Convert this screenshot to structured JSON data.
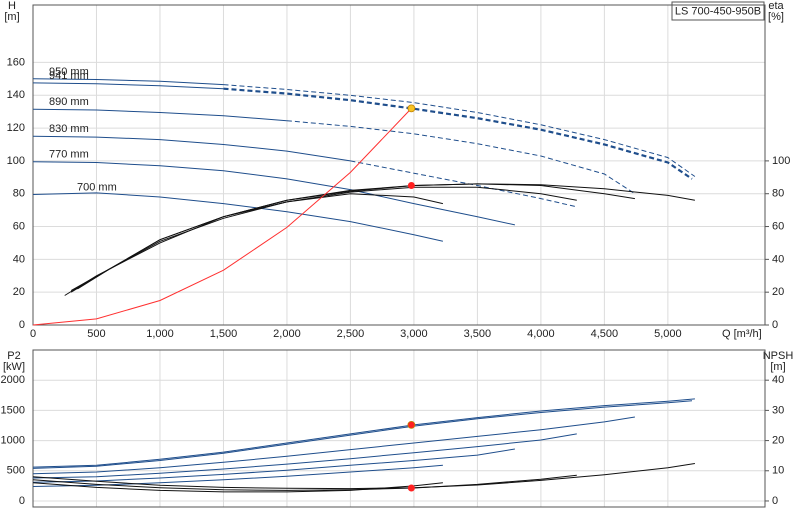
{
  "chart_data": [
    {
      "type": "line",
      "title": "LS 700-450-950B",
      "x_label": "Q [m³/h]",
      "y_label": "H",
      "y_unit": "[m]",
      "y2_label": "eta",
      "y2_unit": "[%]",
      "xlim": [
        0,
        5765
      ],
      "xticks": [
        0,
        500,
        {
          "value": 1000,
          "label": "1,000"
        },
        {
          "value": 1500,
          "label": "1,500"
        },
        {
          "value": 2000,
          "label": "2,000"
        },
        {
          "value": 2500,
          "label": "2,500"
        },
        {
          "value": 3000,
          "label": "3,000"
        },
        {
          "value": 3500,
          "label": "3,500"
        },
        {
          "value": 4000,
          "label": "4,000"
        },
        {
          "value": 4500,
          "label": "4,500"
        },
        {
          "value": 5000,
          "label": "5,000"
        }
      ],
      "ylim": [
        0,
        195
      ],
      "yticks": [
        0,
        20,
        40,
        60,
        80,
        100,
        120,
        140,
        160
      ],
      "y2lim": [
        0,
        195
      ],
      "y2ticks": [
        0,
        20,
        40,
        60,
        80,
        100
      ],
      "grid": true,
      "series": [
        {
          "name": "950 mm",
          "color": "#1f4e8c",
          "style": "solid",
          "x": [
            0,
            500,
            1000,
            1500
          ],
          "values": [
            150,
            149.6,
            148.5,
            146.5
          ]
        },
        {
          "color": "#1f4e8c",
          "style": "dashed",
          "x": [
            1500,
            2000,
            2500,
            3000,
            3500,
            4000,
            4500,
            5000,
            5213
          ],
          "values": [
            146.5,
            143.5,
            140,
            135.5,
            129.5,
            122,
            113,
            102,
            90.5
          ]
        },
        {
          "name": "941 mm",
          "color": "#1f4e8c",
          "style": "solid",
          "x": [
            0,
            500,
            1000,
            1500
          ],
          "values": [
            147.5,
            147,
            145.8,
            144
          ]
        },
        {
          "color": "#1f4e8c",
          "style": "dashed",
          "line_width": 2.2,
          "x": [
            1500,
            2000,
            2500,
            2980,
            3500,
            4000,
            4500,
            5000,
            5190
          ],
          "values": [
            144,
            141,
            137,
            132,
            126,
            119,
            110,
            99,
            89
          ]
        },
        {
          "name": "890 mm",
          "color": "#1f4e8c",
          "style": "solid",
          "x": [
            0,
            500,
            1000,
            1500,
            2000
          ],
          "values": [
            131.5,
            131,
            129.5,
            127.5,
            124.5
          ]
        },
        {
          "color": "#1f4e8c",
          "style": "dashed",
          "x": [
            2000,
            2500,
            3000,
            3500,
            4000,
            4500,
            4740
          ],
          "values": [
            124.5,
            121,
            116.5,
            110.5,
            103,
            92,
            80
          ]
        },
        {
          "name": "830 mm",
          "color": "#1f4e8c",
          "style": "solid",
          "x": [
            0,
            500,
            1000,
            1500,
            2000,
            2500
          ],
          "values": [
            115,
            114.5,
            113,
            110,
            106,
            100
          ]
        },
        {
          "color": "#1f4e8c",
          "style": "dashed",
          "x": [
            2500,
            3000,
            3500,
            4000,
            4283
          ],
          "values": [
            100,
            92.5,
            85,
            77,
            72
          ]
        },
        {
          "name": "770 mm",
          "color": "#1f4e8c",
          "style": "solid",
          "x": [
            0,
            500,
            1000,
            1500,
            2000,
            2500,
            3000,
            3500,
            3795
          ],
          "values": [
            99.5,
            99,
            97,
            94,
            89,
            82.5,
            74,
            66,
            61
          ]
        },
        {
          "name": "700 mm",
          "color": "#1f4e8c",
          "style": "solid",
          "x": [
            0,
            500,
            1000,
            1500,
            2000,
            2500,
            3000,
            3228
          ],
          "values": [
            79.5,
            80.5,
            78,
            74,
            69,
            63,
            55,
            51
          ]
        },
        {
          "color": "#111111",
          "style": "solid",
          "axis": "y2",
          "x": [
            350,
            600,
            1000,
            1500,
            2000,
            2500,
            3000,
            3500,
            4000,
            4500,
            5000,
            5213
          ],
          "values": [
            22,
            34,
            52,
            66,
            76,
            82,
            85,
            86,
            85.5,
            83,
            79,
            76
          ]
        },
        {
          "color": "#111111",
          "style": "solid",
          "axis": "y2",
          "x": [
            300,
            600,
            1000,
            1500,
            2000,
            2500,
            3000,
            3500,
            4000,
            4500,
            4740
          ],
          "values": [
            21,
            34,
            52,
            66,
            76,
            81.5,
            85,
            86,
            85,
            80,
            77
          ]
        },
        {
          "color": "#111111",
          "style": "solid",
          "axis": "y2",
          "x": [
            300,
            600,
            1000,
            1500,
            2000,
            2500,
            3000,
            3500,
            4000,
            4283
          ],
          "values": [
            20,
            34,
            51,
            65,
            75,
            81,
            84,
            84,
            80,
            76
          ]
        },
        {
          "color": "#111111",
          "style": "solid",
          "axis": "y2",
          "x": [
            250,
            500,
            1000,
            1500,
            2000,
            2500,
            3000,
            3228
          ],
          "values": [
            18,
            30,
            50,
            66,
            75,
            80,
            78,
            74
          ]
        },
        {
          "color": "#ff3030",
          "style": "solid",
          "x": [
            0,
            500,
            1000,
            1500,
            2000,
            2500,
            2980
          ],
          "values": [
            0,
            3.7,
            14.9,
            33.4,
            59.5,
            93,
            132
          ]
        }
      ],
      "points": [
        {
          "x": 2980,
          "value": 132,
          "color": "#f7c325"
        },
        {
          "x": 2980,
          "value": 85,
          "axis": "y2",
          "color": "#ff2020"
        }
      ]
    },
    {
      "type": "line",
      "y_label": "P2",
      "y_unit": "[kW]",
      "y2_label": "NPSH",
      "y2_unit": "[m]",
      "xlim": [
        0,
        5765
      ],
      "xticks": [
        0,
        500,
        1000,
        1500,
        2000,
        2500,
        3000,
        3500,
        4000,
        4500,
        5000
      ],
      "ylim": [
        -100,
        2500
      ],
      "yticks": [
        0,
        500,
        1000,
        1500,
        2000
      ],
      "y2lim": [
        -2,
        50
      ],
      "y2ticks": [
        0,
        10,
        20,
        30,
        40
      ],
      "grid": true,
      "series": [
        {
          "color": "#1f4e8c",
          "style": "solid",
          "x": [
            0,
            500,
            1000,
            1500,
            2000,
            2500,
            3000,
            3500,
            4000,
            4500,
            5000,
            5213
          ],
          "values": [
            560,
            590,
            690,
            810,
            960,
            1110,
            1260,
            1380,
            1490,
            1580,
            1650,
            1690
          ]
        },
        {
          "color": "#1f4e8c",
          "style": "solid",
          "x": [
            0,
            500,
            1000,
            1500,
            2000,
            2500,
            3000,
            3500,
            4000,
            4500,
            5000,
            5190
          ],
          "values": [
            540,
            575,
            670,
            790,
            940,
            1090,
            1240,
            1360,
            1465,
            1555,
            1625,
            1660
          ]
        },
        {
          "color": "#1f4e8c",
          "style": "solid",
          "x": [
            0,
            500,
            1000,
            1500,
            2000,
            2500,
            3000,
            3500,
            4000,
            4500,
            4740
          ],
          "values": [
            450,
            480,
            550,
            640,
            740,
            850,
            960,
            1070,
            1180,
            1310,
            1390
          ]
        },
        {
          "color": "#1f4e8c",
          "style": "solid",
          "x": [
            0,
            500,
            1000,
            1500,
            2000,
            2500,
            3000,
            3500,
            4000,
            4283
          ],
          "values": [
            380,
            400,
            460,
            530,
            610,
            700,
            800,
            900,
            1010,
            1110
          ]
        },
        {
          "color": "#1f4e8c",
          "style": "solid",
          "x": [
            0,
            500,
            1000,
            1500,
            2000,
            2500,
            3000,
            3500,
            3795
          ],
          "values": [
            310,
            330,
            380,
            440,
            510,
            590,
            670,
            760,
            860
          ]
        },
        {
          "color": "#1f4e8c",
          "style": "solid",
          "x": [
            0,
            500,
            1000,
            1500,
            2000,
            2500,
            3000,
            3228
          ],
          "values": [
            240,
            260,
            300,
            350,
            410,
            480,
            550,
            590
          ]
        },
        {
          "color": "#111111",
          "style": "solid",
          "axis": "y2",
          "x": [
            0,
            500,
            1000,
            1500,
            2000,
            2500,
            3000,
            3500,
            4000,
            4500,
            5000,
            5213
          ],
          "values": [
            8,
            6.5,
            5.2,
            4.5,
            4.2,
            4.1,
            4.4,
            5.3,
            6.8,
            8.7,
            11,
            12.4
          ]
        },
        {
          "color": "#111111",
          "style": "solid",
          "axis": "y2",
          "x": [
            0,
            500,
            1000,
            1500,
            2000,
            2500,
            3000,
            3500,
            4000,
            4283
          ],
          "values": [
            7,
            5.5,
            4.4,
            3.7,
            3.5,
            3.7,
            4.3,
            5.5,
            7.2,
            8.5
          ]
        },
        {
          "color": "#111111",
          "style": "solid",
          "axis": "y2",
          "x": [
            0,
            500,
            1000,
            1500,
            2000,
            2500,
            3000,
            3228
          ],
          "values": [
            6,
            4.5,
            3.5,
            3,
            3,
            3.5,
            5,
            6
          ]
        }
      ],
      "points": [
        {
          "x": 2980,
          "value": 1260,
          "color": "#ff2020"
        },
        {
          "x": 2980,
          "value": 4.3,
          "axis": "y2",
          "color": "#ff2020"
        }
      ]
    }
  ]
}
